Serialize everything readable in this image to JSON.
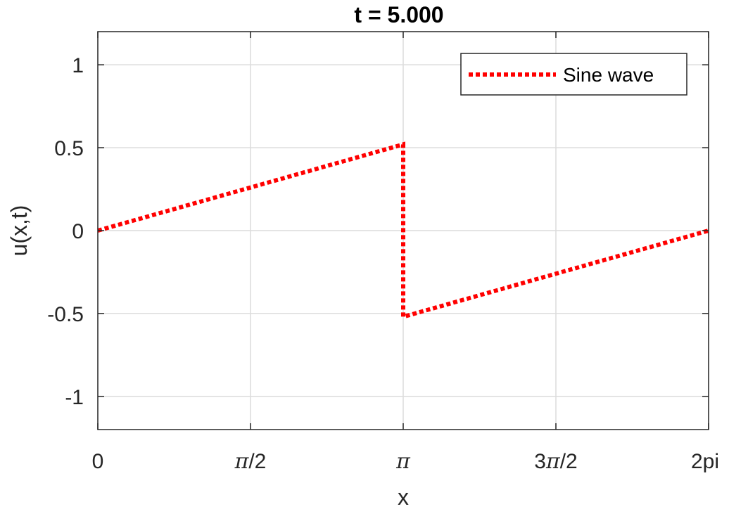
{
  "chart_data": {
    "type": "line",
    "title": "t = 5.000",
    "xlabel": "x",
    "ylabel": "u(x,t)",
    "xlim": [
      0,
      6.283185307
    ],
    "ylim": [
      -1.2,
      1.2
    ],
    "grid": true,
    "legend_position": "top-right",
    "x_ticks": [
      {
        "value": 0,
        "label": "0"
      },
      {
        "value": 1.570796327,
        "label": "π/2"
      },
      {
        "value": 3.141592654,
        "label": "π"
      },
      {
        "value": 4.71238898,
        "label": "3π/2"
      },
      {
        "value": 6.283185307,
        "label": "2pi"
      }
    ],
    "y_ticks": [
      {
        "value": 1,
        "label": "1"
      },
      {
        "value": 0.5,
        "label": "0.5"
      },
      {
        "value": 0,
        "label": "0"
      },
      {
        "value": -0.5,
        "label": "-0.5"
      },
      {
        "value": -1,
        "label": "-1"
      }
    ],
    "series": [
      {
        "name": "Sine wave",
        "color": "#ff0000",
        "style": "dotted",
        "x": [
          0,
          3.1416,
          3.1416,
          6.2832
        ],
        "y": [
          0,
          0.52,
          -0.52,
          0
        ]
      }
    ]
  }
}
